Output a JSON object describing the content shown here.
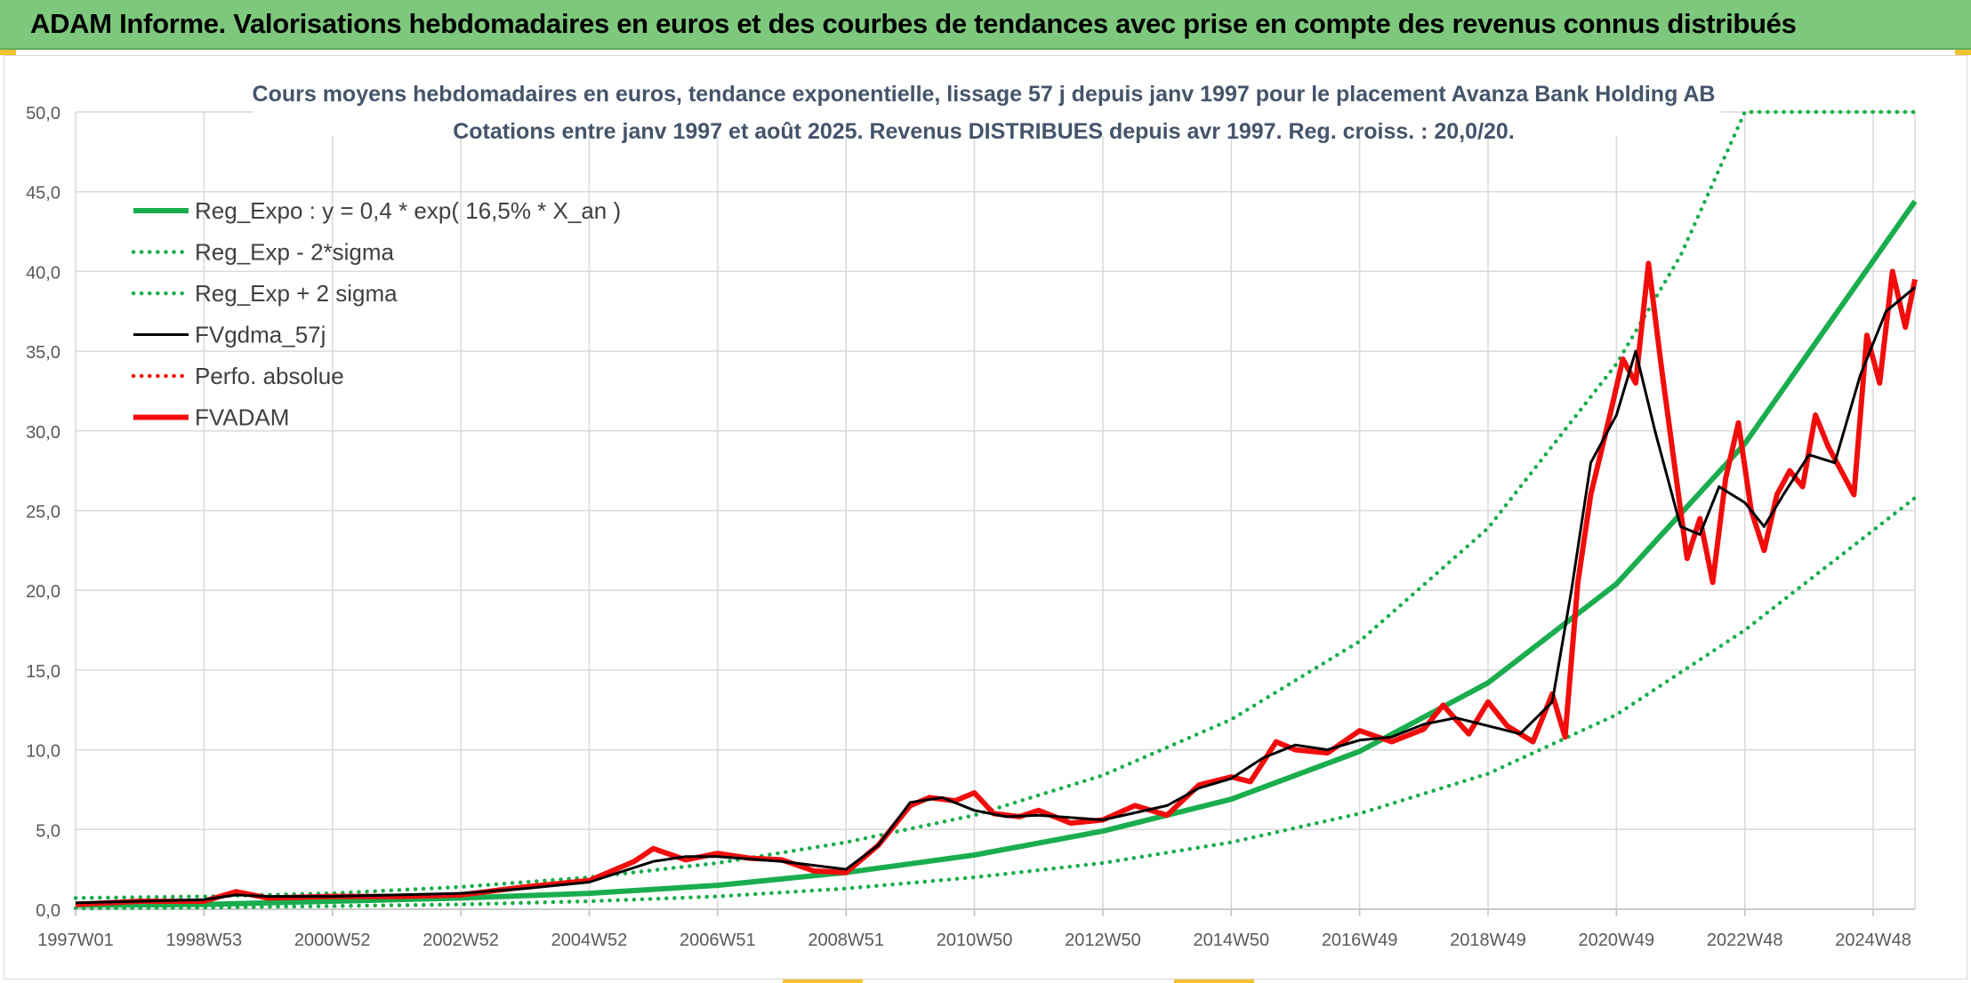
{
  "header": {
    "title": "ADAM Informe. Valorisations hebdomadaires en euros et des courbes de tendances avec prise en compte des revenus connus distribués"
  },
  "colors": {
    "header_bg": "#7dc87c",
    "trend": "#1aad4e",
    "price": "#f20d0d",
    "smooth": "#000000",
    "grid": "#d9d9d9",
    "axis_text": "#595959",
    "title_text": "#44546a"
  },
  "chart_data": {
    "type": "line",
    "title_line1": "Cours moyens hebdomadaires en euros, tendance exponentielle, lissage 57 j depuis janv 1997 pour le placement Avanza Bank Holding AB",
    "title_line2": "Cotations entre janv 1997 et août 2025. Revenus DISTRIBUES depuis avr 1997. Reg. croiss. : 20,0/20.",
    "xlabel": "",
    "ylabel": "",
    "ylim": [
      0,
      50
    ],
    "xlim": [
      1997.0,
      2025.65
    ],
    "yticks": [
      "0,0",
      "5,0",
      "10,0",
      "15,0",
      "20,0",
      "25,0",
      "30,0",
      "35,0",
      "40,0",
      "45,0",
      "50,0"
    ],
    "xticks": [
      {
        "label": "1997W01",
        "x": 1997.0
      },
      {
        "label": "1998W53",
        "x": 1999.0
      },
      {
        "label": "2000W52",
        "x": 2001.0
      },
      {
        "label": "2002W52",
        "x": 2003.0
      },
      {
        "label": "2004W52",
        "x": 2005.0
      },
      {
        "label": "2006W51",
        "x": 2007.0
      },
      {
        "label": "2008W51",
        "x": 2009.0
      },
      {
        "label": "2010W50",
        "x": 2011.0
      },
      {
        "label": "2012W50",
        "x": 2013.0
      },
      {
        "label": "2014W50",
        "x": 2015.0
      },
      {
        "label": "2016W49",
        "x": 2017.0
      },
      {
        "label": "2018W49",
        "x": 2019.0
      },
      {
        "label": "2020W49",
        "x": 2021.0
      },
      {
        "label": "2022W48",
        "x": 2023.0
      },
      {
        "label": "2024W48",
        "x": 2025.0
      }
    ],
    "grid": true,
    "legend_position": "top-left",
    "series": [
      {
        "name": "Reg_Expo : y = 0,4 * exp( 16,5% *  X_an )",
        "style": "solid-thick",
        "color": "#1aad4e",
        "x": [
          1997,
          1999,
          2001,
          2003,
          2005,
          2007,
          2009,
          2011,
          2013,
          2015,
          2017,
          2019,
          2021,
          2023,
          2025.65
        ],
        "y": [
          0.25,
          0.3,
          0.5,
          0.7,
          1.0,
          1.5,
          2.3,
          3.4,
          4.9,
          6.9,
          9.9,
          14.2,
          20.4,
          29.2,
          44.4
        ]
      },
      {
        "name": "Reg_Exp - 2*sigma",
        "style": "dotted",
        "color": "#1aad4e",
        "x": [
          1997,
          1999,
          2001,
          2003,
          2005,
          2007,
          2009,
          2011,
          2013,
          2015,
          2017,
          2019,
          2021,
          2023,
          2025.65
        ],
        "y": [
          0.05,
          0.1,
          0.2,
          0.3,
          0.5,
          0.8,
          1.3,
          2.0,
          2.9,
          4.2,
          6.0,
          8.5,
          12.2,
          17.5,
          25.8
        ]
      },
      {
        "name": "Reg_Exp + 2 sigma",
        "style": "dotted",
        "color": "#1aad4e",
        "x": [
          1997,
          1999,
          2001,
          2003,
          2005,
          2007,
          2009,
          2011,
          2013,
          2015,
          2017,
          2019,
          2021,
          2022,
          2023,
          2025.65
        ],
        "y": [
          0.7,
          0.8,
          1.0,
          1.4,
          2.0,
          2.9,
          4.2,
          5.9,
          8.4,
          11.9,
          16.8,
          23.9,
          34.2,
          41.0,
          50.0,
          50.0
        ]
      },
      {
        "name": "FVgdma_57j",
        "style": "solid",
        "color": "#000000",
        "x": [
          1997,
          1998,
          1999,
          1999.5,
          2000,
          2001,
          2002,
          2003,
          2004,
          2005,
          2006,
          2006.5,
          2007,
          2008,
          2009,
          2009.5,
          2010,
          2010.5,
          2011,
          2011.5,
          2012,
          2013,
          2014,
          2014.5,
          2015,
          2015.5,
          2016,
          2016.5,
          2017,
          2017.5,
          2018,
          2018.5,
          2019,
          2019.5,
          2020,
          2020.3,
          2020.6,
          2021,
          2021.3,
          2021.6,
          2022,
          2022.3,
          2022.6,
          2023,
          2023.3,
          2023.6,
          2024,
          2024.4,
          2024.8,
          2025.2,
          2025.65
        ],
        "y": [
          0.4,
          0.5,
          0.6,
          0.9,
          0.8,
          0.8,
          0.9,
          1.0,
          1.3,
          1.7,
          3.0,
          3.3,
          3.3,
          3.0,
          2.5,
          4.0,
          6.7,
          7.0,
          6.2,
          5.8,
          5.9,
          5.6,
          6.5,
          7.6,
          8.2,
          9.5,
          10.3,
          10.0,
          10.6,
          10.8,
          11.6,
          12.0,
          11.5,
          11.0,
          13.0,
          20.0,
          28.0,
          31.0,
          35.0,
          30.0,
          24.0,
          23.5,
          26.5,
          25.5,
          24.0,
          26.0,
          28.5,
          28.0,
          33.5,
          37.5,
          39.0
        ]
      },
      {
        "name": "Perfo. absolue",
        "style": "dotted",
        "color": "#f20d0d",
        "x": [],
        "y": []
      },
      {
        "name": "FVADAM",
        "style": "solid-thick",
        "color": "#f20d0d",
        "x": [
          1997,
          1998,
          1999,
          1999.5,
          2000,
          2001,
          2002,
          2003,
          2004,
          2005,
          2005.7,
          2006,
          2006.5,
          2007,
          2007.5,
          2008,
          2008.5,
          2009,
          2009.5,
          2010,
          2010.3,
          2010.7,
          2011,
          2011.3,
          2011.7,
          2012,
          2012.5,
          2013,
          2013.5,
          2014,
          2014.5,
          2015,
          2015.3,
          2015.7,
          2016,
          2016.5,
          2017,
          2017.5,
          2018,
          2018.3,
          2018.7,
          2019,
          2019.3,
          2019.7,
          2020,
          2020.2,
          2020.4,
          2020.6,
          2020.9,
          2021.1,
          2021.3,
          2021.5,
          2021.7,
          2021.9,
          2022.1,
          2022.3,
          2022.5,
          2022.7,
          2022.9,
          2023.1,
          2023.3,
          2023.5,
          2023.7,
          2023.9,
          2024.1,
          2024.3,
          2024.5,
          2024.7,
          2024.9,
          2025.1,
          2025.3,
          2025.5,
          2025.65
        ],
        "y": [
          0.3,
          0.5,
          0.5,
          1.1,
          0.7,
          0.8,
          0.8,
          0.9,
          1.4,
          1.8,
          3.0,
          3.8,
          3.1,
          3.5,
          3.2,
          3.1,
          2.4,
          2.3,
          4.0,
          6.5,
          7.0,
          6.8,
          7.3,
          6.0,
          5.8,
          6.2,
          5.4,
          5.6,
          6.5,
          5.9,
          7.8,
          8.3,
          8.0,
          10.5,
          10.0,
          9.8,
          11.2,
          10.5,
          11.3,
          12.8,
          11.0,
          13.0,
          11.5,
          10.5,
          13.5,
          10.8,
          20.5,
          26.0,
          31.0,
          34.5,
          33.0,
          40.5,
          34.0,
          28.0,
          22.0,
          24.5,
          20.5,
          27.0,
          30.5,
          25.0,
          22.5,
          26.0,
          27.5,
          26.5,
          31.0,
          29.0,
          27.5,
          26.0,
          36.0,
          33.0,
          40.0,
          36.5,
          39.5
        ]
      }
    ]
  }
}
